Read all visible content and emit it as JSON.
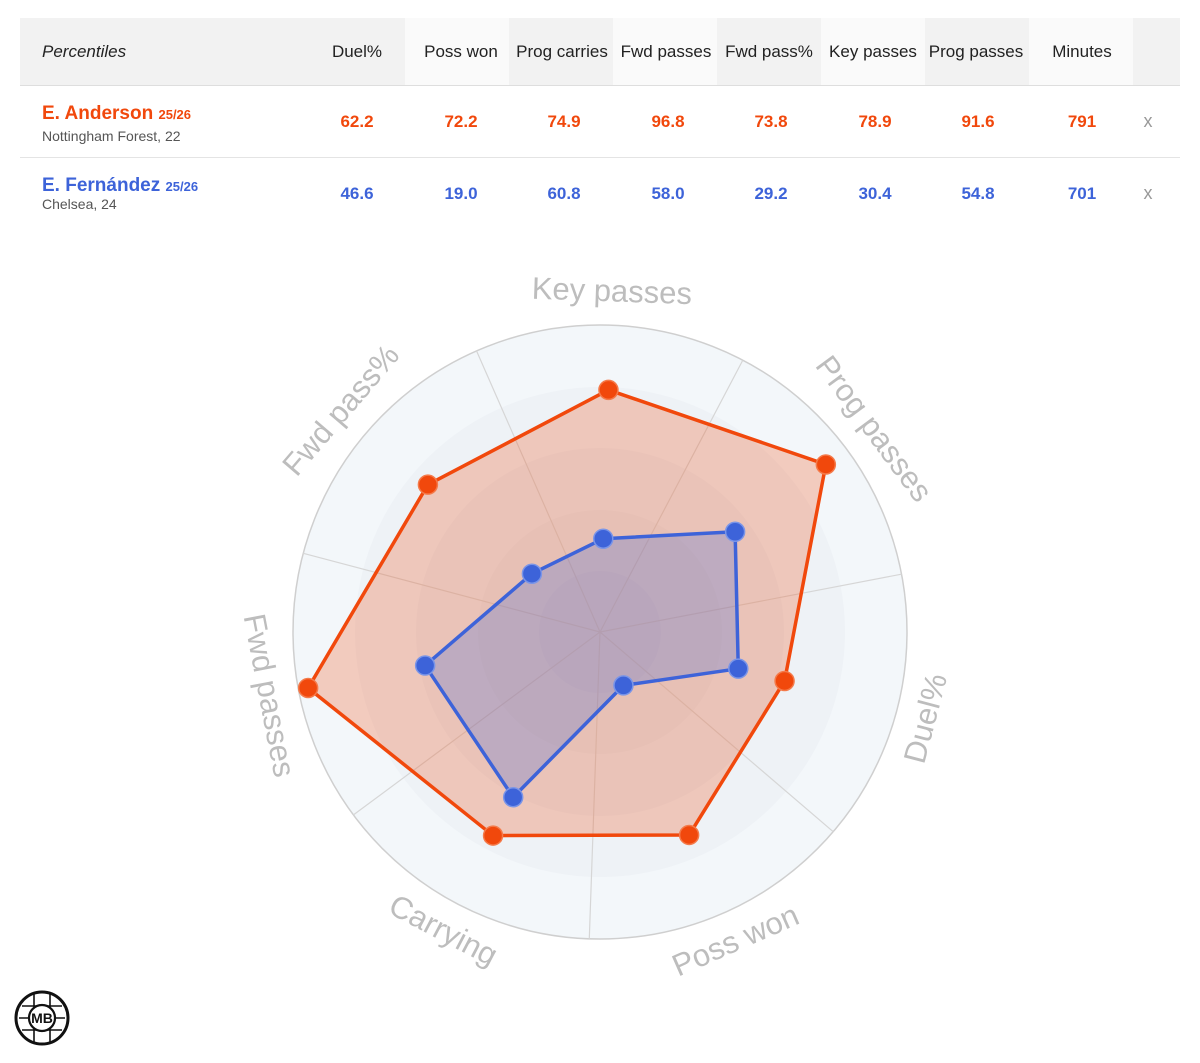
{
  "table": {
    "header_label": "Percentiles",
    "columns": [
      "Duel%",
      "Poss won",
      "Prog carries",
      "Fwd passes",
      "Fwd pass%",
      "Key passes",
      "Prog passes",
      "Minutes"
    ],
    "remove_label": "x",
    "players": [
      {
        "name": "E. Anderson",
        "season": "25/26",
        "team": "Nottingham Forest, 22",
        "color": "#f1480c",
        "values": [
          "62.2",
          "72.2",
          "74.9",
          "96.8",
          "73.8",
          "78.9",
          "91.6",
          "791"
        ]
      },
      {
        "name": "E. Fernández",
        "season": "25/26",
        "team": "Chelsea, 24",
        "color": "#3d63d9",
        "values": [
          "46.6",
          "19.0",
          "60.8",
          "58.0",
          "29.2",
          "30.4",
          "54.8",
          "701"
        ]
      }
    ]
  },
  "chart_data": {
    "type": "radar",
    "axes": [
      "Key passes",
      "Prog passes",
      "Duel%",
      "Poss won",
      "Carrying",
      "Fwd passes",
      "Fwd pass%"
    ],
    "range": [
      0,
      100
    ],
    "series": [
      {
        "name": "E. Anderson",
        "color": "#f1480c",
        "values": [
          78.9,
          91.6,
          62.2,
          72.2,
          74.9,
          96.8,
          73.8
        ]
      },
      {
        "name": "E. Fernández",
        "color": "#3d63d9",
        "values": [
          30.4,
          54.8,
          46.6,
          19.0,
          60.8,
          58.0,
          29.2
        ]
      }
    ]
  },
  "logo": {
    "text": "MB"
  }
}
